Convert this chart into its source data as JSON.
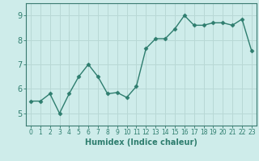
{
  "x": [
    0,
    1,
    2,
    3,
    4,
    5,
    6,
    7,
    8,
    9,
    10,
    11,
    12,
    13,
    14,
    15,
    16,
    17,
    18,
    19,
    20,
    21,
    22,
    23
  ],
  "y": [
    5.5,
    5.5,
    5.8,
    5.0,
    5.8,
    6.5,
    7.0,
    6.5,
    5.8,
    5.85,
    5.65,
    6.1,
    7.65,
    8.05,
    8.05,
    8.45,
    9.0,
    8.6,
    8.6,
    8.7,
    8.7,
    8.6,
    8.85,
    7.55
  ],
  "line_color": "#2e7d6e",
  "marker": "D",
  "markersize": 2.5,
  "linewidth": 1.0,
  "bg_color": "#ceecea",
  "grid_color": "#b8d8d5",
  "xlabel": "Humidex (Indice chaleur)",
  "xlabel_fontsize": 7,
  "xlim": [
    -0.5,
    23.5
  ],
  "ylim": [
    4.5,
    9.5
  ],
  "yticks": [
    5,
    6,
    7,
    8,
    9
  ],
  "xticks": [
    0,
    1,
    2,
    3,
    4,
    5,
    6,
    7,
    8,
    9,
    10,
    11,
    12,
    13,
    14,
    15,
    16,
    17,
    18,
    19,
    20,
    21,
    22,
    23
  ],
  "tick_color": "#2e7d6e",
  "ytick_fontsize": 7,
  "xtick_fontsize": 5.5,
  "axis_color": "#2e7d6e",
  "spine_color": "#3a7a70"
}
